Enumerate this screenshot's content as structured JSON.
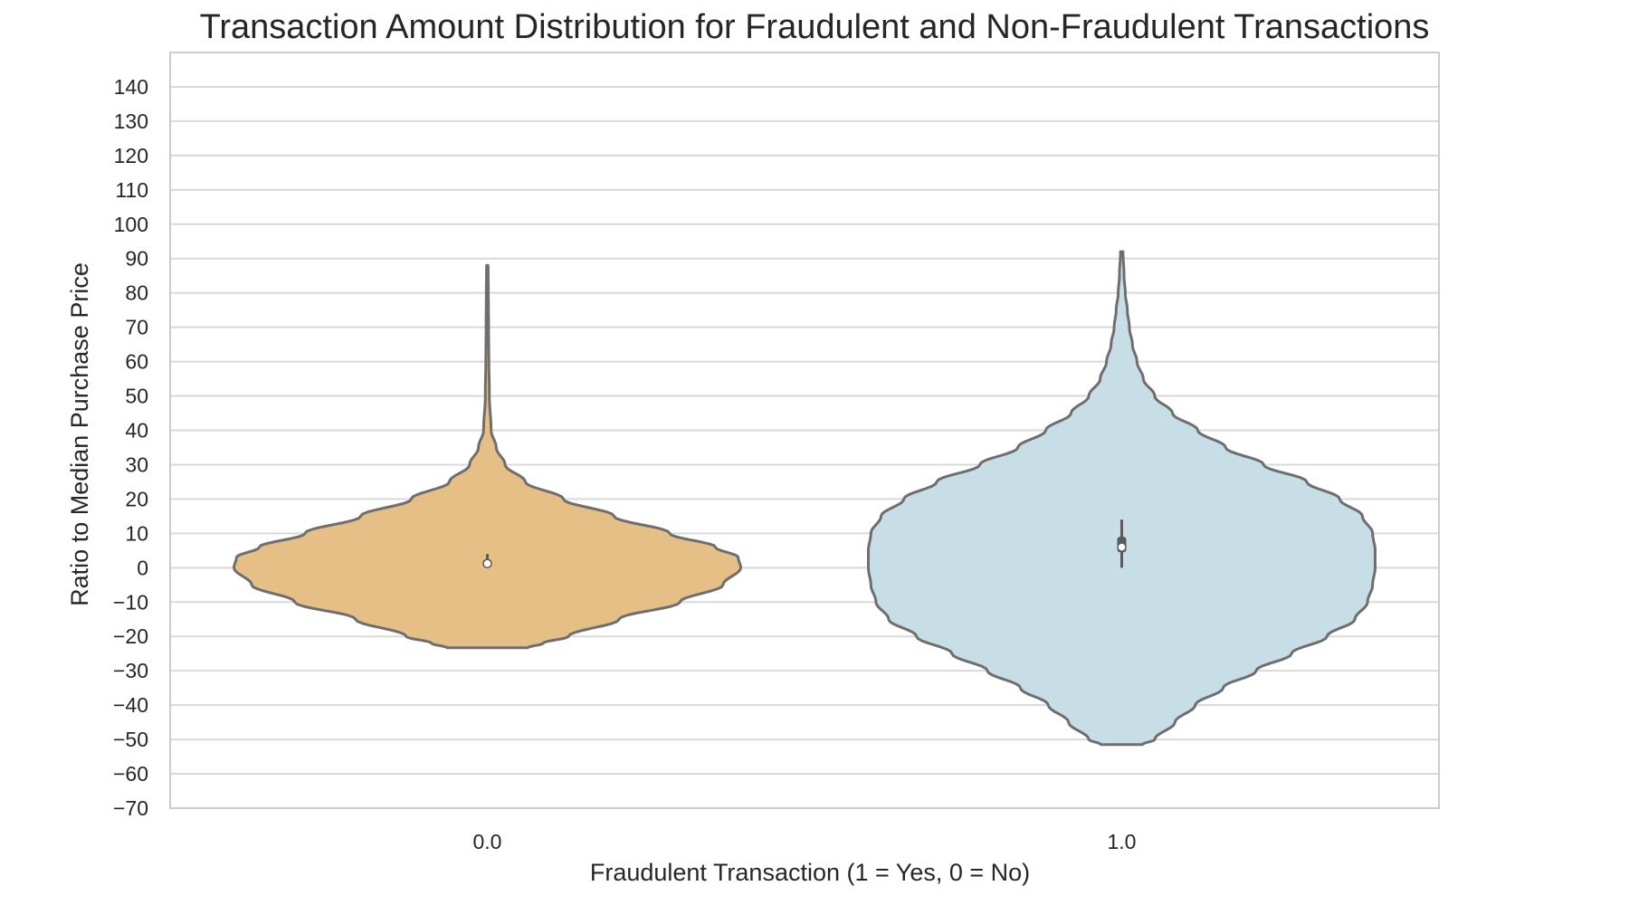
{
  "chart_data": {
    "type": "violin",
    "title": "Transaction Amount Distribution for Fraudulent and Non-Fraudulent Transactions",
    "xlabel": "Fraudulent Transaction (1 = Yes, 0 = No)",
    "ylabel": "Ratio to Median Purchase Price",
    "categories": [
      "0.0",
      "1.0"
    ],
    "ylim": [
      -70,
      150
    ],
    "yticks": [
      -70,
      -60,
      -50,
      -40,
      -30,
      -20,
      -10,
      0,
      10,
      20,
      30,
      40,
      50,
      60,
      70,
      80,
      90,
      100,
      110,
      120,
      130,
      140
    ],
    "grid": "horizontal",
    "series": [
      {
        "category": "0.0",
        "color": "#E6BF86",
        "min": -23.3,
        "max": 88,
        "median": 1.2,
        "q1": 0.5,
        "q3": 2.4,
        "whisker_low": 0,
        "whisker_high": 4,
        "density_profile": [
          [
            -23.3,
            0.16
          ],
          [
            -22,
            0.22
          ],
          [
            -20,
            0.32
          ],
          [
            -15,
            0.52
          ],
          [
            -10,
            0.76
          ],
          [
            -5,
            0.93
          ],
          [
            0,
            1.0
          ],
          [
            3,
            0.99
          ],
          [
            6,
            0.9
          ],
          [
            10,
            0.72
          ],
          [
            15,
            0.5
          ],
          [
            20,
            0.3
          ],
          [
            25,
            0.15
          ],
          [
            30,
            0.07
          ],
          [
            35,
            0.035
          ],
          [
            40,
            0.015
          ],
          [
            50,
            0.008
          ],
          [
            60,
            0.006
          ],
          [
            70,
            0.005
          ],
          [
            80,
            0.004
          ],
          [
            88,
            0.003
          ]
        ]
      },
      {
        "category": "1.0",
        "color": "#C7DEE7",
        "min": -51.5,
        "max": 92,
        "median": 6,
        "q1": 4.5,
        "q3": 9,
        "whisker_low": 0,
        "whisker_high": 14,
        "density_profile": [
          [
            -51.5,
            0.082
          ],
          [
            -50,
            0.13
          ],
          [
            -45,
            0.21
          ],
          [
            -40,
            0.29
          ],
          [
            -35,
            0.4
          ],
          [
            -30,
            0.53
          ],
          [
            -25,
            0.67
          ],
          [
            -20,
            0.81
          ],
          [
            -15,
            0.92
          ],
          [
            -10,
            0.97
          ],
          [
            -5,
            0.99
          ],
          [
            0,
            1.0
          ],
          [
            5,
            1.0
          ],
          [
            10,
            0.99
          ],
          [
            15,
            0.95
          ],
          [
            20,
            0.86
          ],
          [
            25,
            0.73
          ],
          [
            30,
            0.56
          ],
          [
            35,
            0.41
          ],
          [
            40,
            0.3
          ],
          [
            45,
            0.2
          ],
          [
            50,
            0.13
          ],
          [
            55,
            0.085
          ],
          [
            60,
            0.06
          ],
          [
            65,
            0.042
          ],
          [
            70,
            0.03
          ],
          [
            75,
            0.022
          ],
          [
            80,
            0.014
          ],
          [
            85,
            0.009
          ],
          [
            92,
            0.005
          ]
        ]
      }
    ]
  }
}
